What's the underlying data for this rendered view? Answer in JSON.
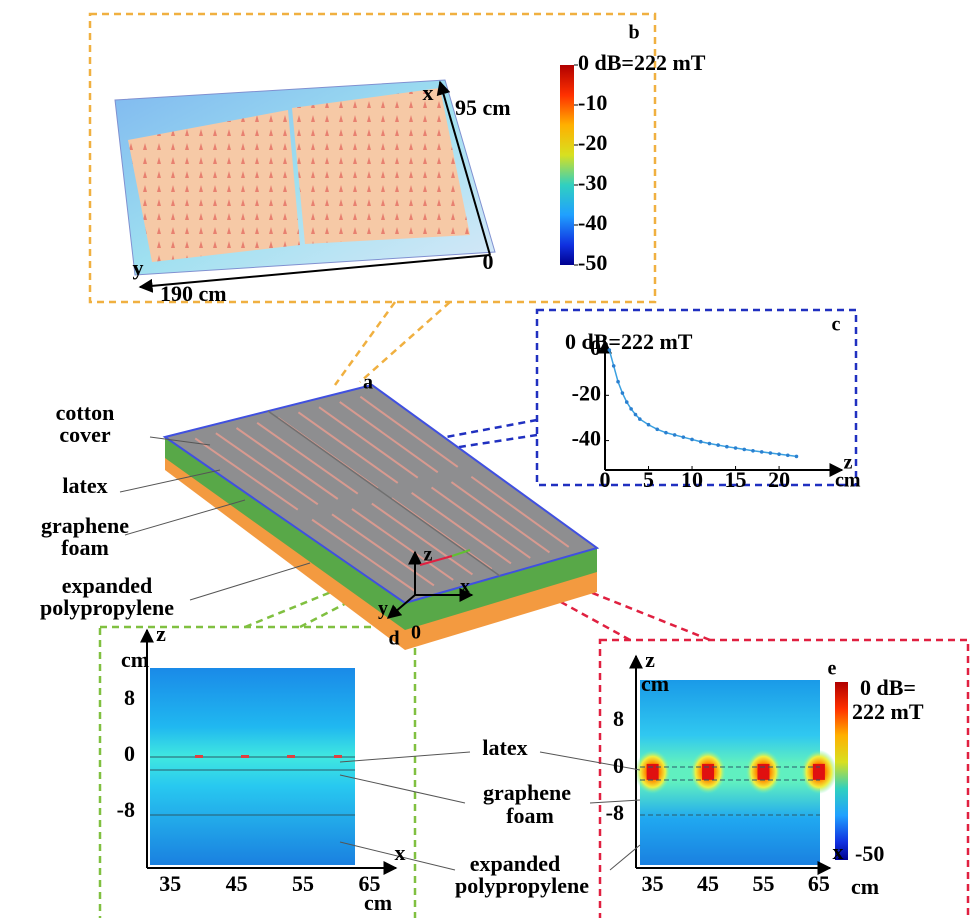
{
  "panel_a": {
    "label": "a",
    "layers": [
      {
        "lines": [
          "cotton",
          "cover"
        ]
      },
      {
        "lines": [
          "latex"
        ]
      },
      {
        "lines": [
          "graphene",
          "foam"
        ]
      },
      {
        "lines": [
          "expanded",
          "polypropylene"
        ]
      }
    ],
    "axes": {
      "z": "z",
      "x": "x",
      "y": "y",
      "origin": 0
    }
  },
  "panel_b": {
    "label": "b",
    "x_axis": "x",
    "x_length": "95 cm",
    "y_axis": "y",
    "y_length": "190 cm",
    "origin": 0,
    "colorbar": {
      "lim": [
        -50,
        0
      ],
      "ticks": [
        {
          "value": 0,
          "label": "0 dB=222 mT"
        },
        -10,
        -20,
        -30,
        -40,
        -50
      ]
    }
  },
  "panel_c": {
    "label": "c",
    "title": "0 dB=222 mT",
    "x_axis": "z",
    "x_unit": "cm",
    "x": [
      0.5,
      1,
      1.5,
      2,
      2.5,
      3,
      3.5,
      4,
      5,
      6,
      7,
      8,
      9,
      10,
      11,
      12,
      13,
      14,
      15,
      16,
      17,
      18,
      19,
      20,
      21,
      22
    ],
    "values": [
      0,
      -7,
      -14,
      -19,
      -23,
      -26,
      -28.5,
      -30.5,
      -33,
      -35,
      -36.5,
      -37.5,
      -38.5,
      -39.5,
      -40.5,
      -41.3,
      -42,
      -42.7,
      -43.3,
      -43.9,
      -44.5,
      -45,
      -45.5,
      -46,
      -46.5,
      -47
    ],
    "xlim": [
      0,
      27
    ],
    "ylim": [
      -53,
      4
    ],
    "xticks": [
      0,
      5,
      10,
      15,
      20
    ],
    "yticks": [
      0,
      -20,
      -40
    ]
  },
  "panel_d": {
    "label": "d",
    "z_axis": "z",
    "z_unit": "cm",
    "zticks": [
      8,
      0,
      -8
    ],
    "zlim": [
      -16,
      18
    ],
    "x_axis": "x",
    "x_unit": "cm",
    "xticks": [
      35,
      45,
      55,
      65
    ],
    "xlim": [
      31.5,
      69
    ]
  },
  "panel_e": {
    "label": "e",
    "z_axis": "z",
    "z_unit": "cm",
    "zticks": [
      8,
      0,
      -8
    ],
    "zlim": [
      -17,
      19
    ],
    "x_axis": "x",
    "x_unit": "cm",
    "xticks": [
      35,
      45,
      55,
      65
    ],
    "xlim": [
      32,
      67
    ],
    "colorbar": {
      "top": [
        "0 dB=",
        "222 mT"
      ],
      "bottom": -50
    }
  },
  "annotations": {
    "latex": [
      "latex"
    ],
    "graphene_foam": [
      "graphene",
      "foam"
    ],
    "expanded_polypropylene": [
      "expanded",
      "polypropylene"
    ]
  }
}
